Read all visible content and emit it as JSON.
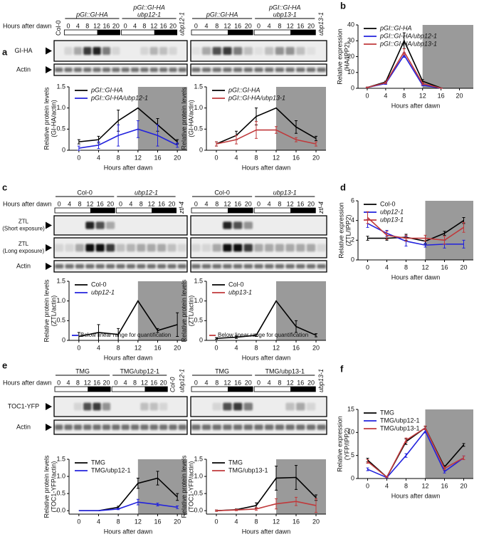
{
  "panel_labels": [
    "a",
    "b",
    "c",
    "d",
    "e",
    "f"
  ],
  "blot_panels": [
    {
      "hours_label": "Hours after dawn",
      "row_labels": [
        [
          "GI-HA"
        ],
        [
          "Actin"
        ]
      ],
      "blots": [
        {
          "before": [
            "Col-0"
          ],
          "groups": [
            {
              "name": [
                "pGI::GI-HA"
              ],
              "lanes": [
                0,
                4,
                8,
                12,
                16,
                20
              ]
            },
            {
              "name": [
                "pGI::GI-HA",
                "ubp12-1"
              ],
              "lanes": [
                0,
                4,
                8,
                12,
                16,
                20
              ]
            }
          ],
          "after": [
            "ubp12-1"
          ]
        },
        {
          "before": [],
          "groups": [
            {
              "name": [
                "pGI::GI-HA"
              ],
              "lanes": [
                0,
                4,
                8,
                12,
                16,
                20
              ]
            },
            {
              "name": [
                "pGI::GI-HA",
                "ubp13-1"
              ],
              "lanes": [
                0,
                4,
                8,
                12,
                16,
                20
              ]
            }
          ],
          "after": [
            "ubp13-1"
          ]
        }
      ]
    },
    {
      "hours_label": "Hours after dawn",
      "row_labels": [
        [
          "ZTL",
          "(Short exposure)"
        ],
        [
          "ZTL",
          "(Long exposure)"
        ],
        [
          "Actin"
        ]
      ],
      "blots": [
        {
          "before": [],
          "groups": [
            {
              "name": [
                "Col-0"
              ],
              "lanes": [
                0,
                4,
                8,
                12,
                16,
                20
              ]
            },
            {
              "name": [
                "ubp12-1"
              ],
              "lanes": [
                0,
                4,
                8,
                12,
                16,
                20
              ]
            }
          ],
          "after": [
            "ztl-4"
          ]
        },
        {
          "before": [],
          "groups": [
            {
              "name": [
                "Col-0"
              ],
              "lanes": [
                0,
                4,
                8,
                12,
                16,
                20
              ]
            },
            {
              "name": [
                "ubp13-1"
              ],
              "lanes": [
                0,
                4,
                8,
                12,
                16,
                20
              ]
            }
          ],
          "after": [
            "ztl-4"
          ]
        }
      ]
    },
    {
      "hours_label": "Hours after dawn",
      "row_labels": [
        [
          "TOC1-YFP"
        ],
        [
          "Actin"
        ]
      ],
      "blots": [
        {
          "before": [],
          "groups": [
            {
              "name": [
                "TMG"
              ],
              "lanes": [
                0,
                4,
                8,
                12,
                16,
                20
              ]
            },
            {
              "name": [
                "TMG/ubp12-1"
              ],
              "lanes": [
                0,
                4,
                8,
                12,
                16,
                20
              ]
            }
          ],
          "after": [
            "Col-0",
            "ubp12-1"
          ]
        },
        {
          "before": [],
          "groups": [
            {
              "name": [
                "TMG"
              ],
              "lanes": [
                0,
                4,
                8,
                12,
                16,
                20
              ]
            },
            {
              "name": [
                "TMG/ubp13-1"
              ],
              "lanes": [
                0,
                4,
                8,
                12,
                16,
                20
              ]
            }
          ],
          "after": [
            "ubp13-1"
          ]
        }
      ]
    }
  ],
  "chart_data": [
    {
      "type": "line",
      "xlabel": "Hours after dawn",
      "ylabel": [
        "Relative protein levels",
        "(GI-HA/actin)"
      ],
      "x": [
        0,
        4,
        8,
        12,
        16,
        20
      ],
      "xlim": [
        -2,
        22
      ],
      "xticks": [
        0,
        4,
        8,
        12,
        16,
        20
      ],
      "ylim": [
        0,
        1.5
      ],
      "yticks": [
        0,
        0.5,
        {
          "value": 1,
          "label": "1.0"
        },
        1.5
      ],
      "shade": [
        12,
        22
      ],
      "legend": "upper left",
      "series": [
        {
          "name": "pGI::GI-HA",
          "color": "#000000",
          "values": [
            0.2,
            0.25,
            0.7,
            1.0,
            0.6,
            0.2
          ],
          "errors": [
            0.05,
            0.08,
            0.25,
            0,
            0.15,
            0.05
          ]
        },
        {
          "name": "pGI::GI-HA/ubp12-1",
          "color": "#2222dd",
          "values": [
            0.05,
            0.12,
            0.35,
            0.5,
            0.35,
            0.12
          ],
          "errors": [
            0.05,
            0.08,
            0.25,
            0.2,
            0.25,
            0.05
          ]
        }
      ]
    },
    {
      "type": "line",
      "xlabel": "Hours after dawn",
      "ylabel": [
        "Relative protein levels",
        "(GI-HA/actin)"
      ],
      "x": [
        0,
        4,
        8,
        12,
        16,
        20
      ],
      "xlim": [
        -2,
        22
      ],
      "xticks": [
        0,
        4,
        8,
        12,
        16,
        20
      ],
      "ylim": [
        0,
        1.5
      ],
      "yticks": [
        0,
        0.5,
        {
          "value": 1,
          "label": "1.0"
        },
        1.5
      ],
      "shade": [
        12,
        22
      ],
      "legend": "upper left",
      "series": [
        {
          "name": "pGI::GI-HA",
          "color": "#000000",
          "values": [
            0.15,
            0.35,
            0.8,
            1.0,
            0.55,
            0.28
          ],
          "errors": [
            0.05,
            0.1,
            0.2,
            0,
            0.15,
            0.05
          ]
        },
        {
          "name": "pGI::GI-HA/ubp13-1",
          "color": "#c0393b",
          "values": [
            0.15,
            0.25,
            0.48,
            0.48,
            0.25,
            0.15
          ],
          "errors": [
            0.05,
            0.1,
            0.2,
            0.08,
            0.05,
            0.05
          ]
        }
      ]
    },
    {
      "type": "line",
      "xlabel": "Hours after dawn",
      "ylabel": [
        "Relative expression",
        "(HA/IPP2)"
      ],
      "x": [
        0,
        4,
        8,
        12,
        16
      ],
      "xlim": [
        -2,
        23
      ],
      "xticks": [
        0,
        4,
        8,
        12,
        16,
        20
      ],
      "ylim": [
        0,
        40
      ],
      "yticks": [
        0,
        10,
        20,
        30,
        40
      ],
      "shade": [
        12,
        23
      ],
      "legend": "upper left",
      "series": [
        {
          "name": "pGI::GI-HA",
          "color": "#000000",
          "values": [
            0.5,
            4,
            30,
            4.5,
            0.2
          ],
          "errors": [
            0.3,
            0.5,
            5,
            1,
            0.1
          ]
        },
        {
          "name": "pGI::GI-HA/ubp12-1",
          "color": "#2222dd",
          "values": [
            0.5,
            3,
            21,
            2,
            0.1
          ],
          "errors": [
            0.2,
            0.5,
            1.5,
            0.5,
            0.1
          ]
        },
        {
          "name": "pGI::GI-HA/ubp13-1",
          "color": "#c0393b",
          "values": [
            0.5,
            3.5,
            23,
            3,
            0.1
          ],
          "errors": [
            0.2,
            0.5,
            2,
            0.8,
            0.1
          ]
        }
      ]
    },
    {
      "type": "line",
      "xlabel": "Hours after dawn",
      "ylabel": [
        "Relative protein levels",
        "(ZTL/actin)"
      ],
      "x": [
        0,
        4,
        8,
        12,
        16,
        20
      ],
      "xlim": [
        -2,
        22
      ],
      "xticks": [
        0,
        4,
        8,
        12,
        16,
        20
      ],
      "ylim": [
        0,
        1.5
      ],
      "yticks": [
        0,
        0.5,
        {
          "value": 1,
          "label": "1.0"
        },
        1.5
      ],
      "shade": [
        12,
        22
      ],
      "legend": "upper left",
      "annotation": "Below linear range for quantification",
      "series": [
        {
          "name": "Col-0",
          "color": "#000000",
          "values": [
            0.1,
            0.2,
            0.15,
            1.0,
            0.25,
            0.4
          ],
          "errors": [
            0.1,
            0.2,
            0.15,
            0,
            0.05,
            0.3
          ]
        },
        {
          "name": "ubp12-1",
          "color": "#2222dd",
          "values": [
            null,
            null,
            null,
            null,
            null,
            null
          ],
          "errors": [
            null,
            null,
            null,
            null,
            null,
            null
          ]
        }
      ]
    },
    {
      "type": "line",
      "xlabel": "Hours after dawn",
      "ylabel": [
        "Relative protein levels",
        "(ZTL/actin)"
      ],
      "x": [
        0,
        4,
        8,
        12,
        16,
        20
      ],
      "xlim": [
        -2,
        22
      ],
      "xticks": [
        0,
        4,
        8,
        12,
        16,
        20
      ],
      "ylim": [
        0,
        1.5
      ],
      "yticks": [
        0,
        0.5,
        {
          "value": 1,
          "label": "1.0"
        },
        1.5
      ],
      "shade": [
        12,
        22
      ],
      "legend": "upper left",
      "annotation": "Below linear range for quantification",
      "series": [
        {
          "name": "Col-0",
          "color": "#000000",
          "values": [
            0.05,
            0.08,
            0.13,
            1.0,
            0.35,
            0.13
          ],
          "errors": [
            0.02,
            0.03,
            0.03,
            0,
            0.15,
            0.04
          ]
        },
        {
          "name": "ubp13-1",
          "color": "#c0393b",
          "values": [
            null,
            null,
            null,
            null,
            null,
            null
          ],
          "errors": [
            null,
            null,
            null,
            null,
            null,
            null
          ]
        }
      ]
    },
    {
      "type": "line",
      "xlabel": "Hours after dawn",
      "ylabel": [
        "Relative expression",
        "(ZTL/IPP2)"
      ],
      "x": [
        0,
        4,
        8,
        12,
        16,
        20
      ],
      "xlim": [
        -2,
        22
      ],
      "xticks": [
        0,
        4,
        8,
        12,
        16,
        20
      ],
      "ylim": [
        0,
        6
      ],
      "yticks": [
        0,
        2,
        4,
        6
      ],
      "shade": [
        12,
        22
      ],
      "legend": "upper left",
      "series": [
        {
          "name": "Col-0",
          "color": "#000000",
          "values": [
            2.2,
            2.2,
            2.3,
            1.9,
            2.7,
            4.0
          ],
          "errors": [
            0.2,
            0.2,
            0.3,
            0.3,
            0.2,
            0.3
          ]
        },
        {
          "name": "ubp12-1",
          "color": "#2222dd",
          "values": [
            3.7,
            2.7,
            1.9,
            1.5,
            1.6,
            1.6
          ],
          "errors": [
            0.4,
            0.3,
            0.5,
            0.2,
            0.4,
            0.4
          ]
        },
        {
          "name": "ubp13-1",
          "color": "#c0393b",
          "values": [
            4.3,
            2.5,
            2.2,
            2.2,
            2.0,
            3.3
          ],
          "errors": [
            0.6,
            0.4,
            0.3,
            0.3,
            0.4,
            0.5
          ]
        }
      ]
    },
    {
      "type": "line",
      "xlabel": "Hours after dawn",
      "ylabel": [
        "Relative protein levels",
        "(TOC1-YFP/actin)"
      ],
      "x": [
        0,
        4,
        8,
        12,
        16,
        20
      ],
      "xlim": [
        -2,
        22
      ],
      "xticks": [
        0,
        4,
        8,
        12,
        16,
        20
      ],
      "ylim": [
        -0.1,
        1.5
      ],
      "yticks": [
        {
          "value": 0,
          "label": "0.0"
        },
        0.5,
        {
          "value": 1,
          "label": "1.0"
        },
        1.5
      ],
      "shade": [
        12,
        22
      ],
      "legend": "upper left",
      "series": [
        {
          "name": "TMG",
          "color": "#000000",
          "values": [
            0,
            0,
            0.1,
            0.8,
            0.95,
            0.4
          ],
          "errors": [
            0,
            0,
            0.03,
            0.15,
            0.2,
            0.1
          ]
        },
        {
          "name": "TMG/ubp12-1",
          "color": "#2222dd",
          "values": [
            0,
            0,
            0.05,
            0.25,
            0.18,
            0.1
          ],
          "errors": [
            0,
            0,
            0.02,
            0.08,
            0.04,
            0.04
          ]
        }
      ]
    },
    {
      "type": "line",
      "xlabel": "Hours after dawn",
      "ylabel": [
        "Relative protein levels",
        "(TOC1-YFP/actin)"
      ],
      "x": [
        0,
        4,
        8,
        12,
        16,
        20
      ],
      "xlim": [
        -2,
        22
      ],
      "xticks": [
        0,
        4,
        8,
        12,
        16,
        20
      ],
      "ylim": [
        -0.1,
        1.5
      ],
      "yticks": [
        {
          "value": 0,
          "label": "0.0"
        },
        0.5,
        {
          "value": 1,
          "label": "1.0"
        },
        1.5
      ],
      "shade": [
        12,
        22
      ],
      "legend": "upper left",
      "series": [
        {
          "name": "TMG",
          "color": "#000000",
          "values": [
            0,
            0.03,
            0.15,
            0.95,
            0.97,
            0.38
          ],
          "errors": [
            0.02,
            0.02,
            0.08,
            0.35,
            0.35,
            0.08
          ]
        },
        {
          "name": "TMG/ubp13-1",
          "color": "#c0393b",
          "values": [
            0,
            0.02,
            0.05,
            0.2,
            0.27,
            0.15
          ],
          "errors": [
            0.02,
            0.02,
            0.04,
            0.15,
            0.12,
            0.2
          ]
        }
      ]
    },
    {
      "type": "line",
      "xlabel": "Hours after dawn",
      "ylabel": [
        "Relative expression",
        "(YFP/IPP2)"
      ],
      "x": [
        0,
        4,
        8,
        12,
        16,
        20
      ],
      "xlim": [
        -2,
        22
      ],
      "xticks": [
        0,
        4,
        8,
        12,
        16,
        20
      ],
      "ylim": [
        0,
        15
      ],
      "yticks": [
        0,
        5,
        10,
        15
      ],
      "shade": [
        12,
        22
      ],
      "legend": "upper left",
      "series": [
        {
          "name": "TMG",
          "color": "#000000",
          "values": [
            4,
            0.3,
            8,
            11,
            2.5,
            7.3
          ],
          "errors": [
            0.4,
            0.1,
            0.6,
            0.3,
            0.3,
            0.3
          ]
        },
        {
          "name": "TMG/ubp12-1",
          "color": "#2222dd",
          "values": [
            2,
            0.2,
            5,
            10.3,
            1.5,
            4.5
          ],
          "errors": [
            0.3,
            0.1,
            0.4,
            0.4,
            0.3,
            0.4
          ]
        },
        {
          "name": "TMG/ubp13-1",
          "color": "#c0393b",
          "values": [
            3.7,
            0.3,
            8.3,
            11,
            2.2,
            4.5
          ],
          "errors": [
            0.4,
            0.1,
            0.5,
            0.4,
            0.3,
            0.4
          ]
        }
      ]
    }
  ]
}
